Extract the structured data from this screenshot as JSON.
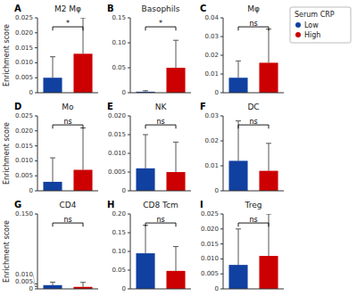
{
  "chart_data": [
    {
      "type": "bar",
      "title": "M2 Mφ",
      "panel_label": "A",
      "annotations": [
        "*"
      ],
      "ylabel": "Enrichment score",
      "categories": [
        null
      ],
      "series": [
        {
          "name": "Low",
          "color": "#1040a0",
          "values": [
            0.005
          ],
          "errors": [
            0.007
          ]
        },
        {
          "name": "High",
          "color": "#cc0000",
          "values": [
            0.013
          ],
          "errors": [
            0.012
          ]
        }
      ],
      "ylim": [
        0,
        0.025
      ],
      "yticks": [
        0,
        0.005,
        {
          "value": 0.01,
          "label": "0.010"
        },
        0.015,
        {
          "value": 0.02,
          "label": "0.020"
        },
        0.025
      ]
    },
    {
      "type": "bar",
      "title": "Basophils",
      "panel_label": "B",
      "annotations": [
        "*"
      ],
      "categories": [
        null
      ],
      "series": [
        {
          "name": "Low",
          "color": "#1040a0",
          "values": [
            0.002
          ],
          "errors": [
            0.002
          ]
        },
        {
          "name": "High",
          "color": "#cc0000",
          "values": [
            0.05
          ],
          "errors": [
            0.055
          ]
        }
      ],
      "ylim": [
        0,
        0.15
      ],
      "yticks": [
        0,
        0.05,
        {
          "value": 0.1,
          "label": "0.10"
        },
        0.15
      ]
    },
    {
      "type": "bar",
      "title": "Mφ",
      "panel_label": "C",
      "annotations": [
        "ns"
      ],
      "legend": "right",
      "legend_title": "Serum CRP",
      "categories": [
        null
      ],
      "series": [
        {
          "name": "Low",
          "color": "#1040a0",
          "values": [
            0.008
          ],
          "errors": [
            0.009
          ]
        },
        {
          "name": "High",
          "color": "#cc0000",
          "values": [
            0.016
          ],
          "errors": [
            0.018
          ]
        }
      ],
      "ylim": [
        0,
        0.04
      ],
      "yticks": [
        0,
        0.01,
        0.02,
        0.03,
        0.04
      ]
    },
    {
      "type": "bar",
      "title": "Mo",
      "panel_label": "D",
      "annotations": [
        "ns"
      ],
      "ylabel": "Enrichment score",
      "categories": [
        null
      ],
      "series": [
        {
          "name": "Low",
          "color": "#1040a0",
          "values": [
            0.003
          ],
          "errors": [
            0.008
          ]
        },
        {
          "name": "High",
          "color": "#cc0000",
          "values": [
            0.007
          ],
          "errors": [
            0.014
          ]
        }
      ],
      "ylim": [
        0,
        0.025
      ],
      "yticks": [
        0,
        0.005,
        {
          "value": 0.01,
          "label": "0.010"
        },
        0.015,
        {
          "value": 0.02,
          "label": "0.020"
        },
        0.025
      ]
    },
    {
      "type": "bar",
      "title": "NK",
      "panel_label": "E",
      "annotations": [
        "ns"
      ],
      "categories": [
        null
      ],
      "series": [
        {
          "name": "Low",
          "color": "#1040a0",
          "values": [
            0.006
          ],
          "errors": [
            0.009
          ]
        },
        {
          "name": "High",
          "color": "#cc0000",
          "values": [
            0.005
          ],
          "errors": [
            0.008
          ]
        }
      ],
      "ylim": [
        0,
        0.02
      ],
      "yticks": [
        0,
        0.005,
        {
          "value": 0.01,
          "label": "0.010"
        },
        0.015,
        {
          "value": 0.02,
          "label": "0.020"
        }
      ]
    },
    {
      "type": "bar",
      "title": "DC",
      "panel_label": "F",
      "annotations": [
        "ns"
      ],
      "categories": [
        null
      ],
      "series": [
        {
          "name": "Low",
          "color": "#1040a0",
          "values": [
            0.012
          ],
          "errors": [
            0.016
          ]
        },
        {
          "name": "High",
          "color": "#cc0000",
          "values": [
            0.008
          ],
          "errors": [
            0.011
          ]
        }
      ],
      "ylim": [
        0,
        0.03
      ],
      "yticks": [
        0,
        0.01,
        0.02,
        0.03
      ]
    },
    {
      "type": "bar",
      "title": "CD4",
      "panel_label": "G",
      "annotations": [
        "ns"
      ],
      "ylabel": "Enrichment score",
      "categories": [
        null
      ],
      "series": [
        {
          "name": "Low",
          "color": "#1040a0",
          "values": [
            0.0075
          ],
          "errors": [
            0.006
          ]
        },
        {
          "name": "High",
          "color": "#cc0000",
          "values": [
            0.004
          ],
          "errors": [
            0.009
          ]
        }
      ],
      "ylim": [
        0,
        0.15
      ],
      "yticks": [
        0,
        0.005,
        {
          "value": 0.01,
          "label": "0.010"
        },
        {
          "value": 0.15,
          "label": "0.150"
        }
      ]
    },
    {
      "type": "bar",
      "title": "CD8 Tcm",
      "panel_label": "H",
      "annotations": [
        "ns"
      ],
      "categories": [
        null
      ],
      "series": [
        {
          "name": "Low",
          "color": "#1040a0",
          "values": [
            0.095
          ],
          "errors": [
            0.075
          ]
        },
        {
          "name": "High",
          "color": "#cc0000",
          "values": [
            0.048
          ],
          "errors": [
            0.065
          ]
        }
      ],
      "ylim": [
        0,
        0.2
      ],
      "yticks": [
        0,
        0.05,
        {
          "value": 0.1,
          "label": "0.10"
        },
        0.15,
        {
          "value": 0.2,
          "label": "0.20"
        }
      ]
    },
    {
      "type": "bar",
      "title": "Treg",
      "panel_label": "I",
      "annotations": [
        "ns"
      ],
      "categories": [
        null
      ],
      "series": [
        {
          "name": "Low",
          "color": "#1040a0",
          "values": [
            0.008
          ],
          "errors": [
            0.012
          ]
        },
        {
          "name": "High",
          "color": "#cc0000",
          "values": [
            0.011
          ],
          "errors": [
            0.014
          ]
        }
      ],
      "ylim": [
        0,
        0.025
      ],
      "yticks": [
        0,
        0.005,
        {
          "value": 0.01,
          "label": "0.010"
        },
        0.015,
        {
          "value": 0.02,
          "label": "0.020"
        },
        0.025
      ]
    }
  ]
}
